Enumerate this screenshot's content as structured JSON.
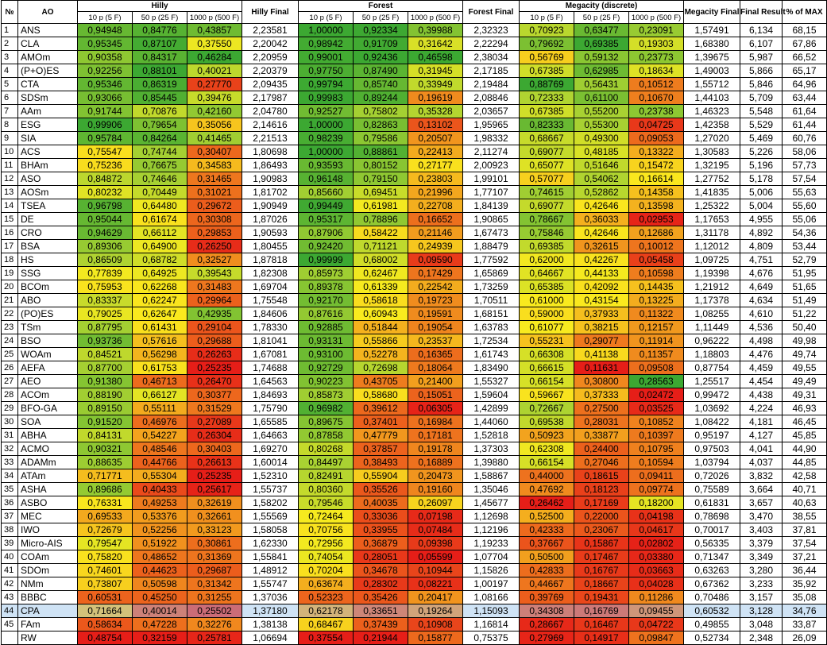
{
  "header": {
    "num": "№",
    "ao": "AO",
    "hilly": "Hilly",
    "hilly_final": "Hilly Final",
    "forest": "Forest",
    "forest_final": "Forest Final",
    "megacity": "Megacity (discrete)",
    "megacity_final": "Megacity Final",
    "final_result": "Final Result",
    "pct_max": "% of MAX",
    "sub": [
      "10 p (5 F)",
      "50 p (25 F)",
      "1000 p (500 F)",
      "10 p (5 F)",
      "50 p (25 F)",
      "1000 p (500 F)",
      "10 p (5 F)",
      "50 p (25 F)",
      "1000 p (500 F)"
    ]
  },
  "colors": {
    "final_bg": "#ffffff",
    "selected_row_bg": "#cfe3f5"
  },
  "rows": [
    {
      "num": "1",
      "ao": "ANS",
      "v": [
        "0,94948",
        "0,84776",
        "0,43857",
        "2,23581",
        "1,00000",
        "0,92334",
        "0,39988",
        "2,32323",
        "0,70923",
        "0,63477",
        "0,23091",
        "1,57491",
        "6,134",
        "68,15"
      ]
    },
    {
      "num": "2",
      "ao": "CLA",
      "v": [
        "0,95345",
        "0,87107",
        "0,37550",
        "2,20042",
        "0,98942",
        "0,91709",
        "0,31642",
        "2,22294",
        "0,79692",
        "0,69385",
        "0,19303",
        "1,68380",
        "6,107",
        "67,86"
      ]
    },
    {
      "num": "3",
      "ao": "AMOm",
      "v": [
        "0,90358",
        "0,84317",
        "0,46284",
        "2,20959",
        "0,99001",
        "0,92436",
        "0,46598",
        "2,38034",
        "0,56769",
        "0,59132",
        "0,23773",
        "1,39675",
        "5,987",
        "66,52"
      ]
    },
    {
      "num": "4",
      "ao": "(P+O)ES",
      "v": [
        "0,92256",
        "0,88101",
        "0,40021",
        "2,20379",
        "0,97750",
        "0,87490",
        "0,31945",
        "2,17185",
        "0,67385",
        "0,62985",
        "0,18634",
        "1,49003",
        "5,866",
        "65,17"
      ]
    },
    {
      "num": "5",
      "ao": "CTA",
      "v": [
        "0,95346",
        "0,86319",
        "0,27770",
        "2,09435",
        "0,99794",
        "0,85740",
        "0,33949",
        "2,19484",
        "0,88769",
        "0,56431",
        "0,10512",
        "1,55712",
        "5,846",
        "64,96"
      ]
    },
    {
      "num": "6",
      "ao": "SDSm",
      "v": [
        "0,93066",
        "0,85445",
        "0,39476",
        "2,17987",
        "0,99983",
        "0,89244",
        "0,19619",
        "2,08846",
        "0,72333",
        "0,61100",
        "0,10670",
        "1,44103",
        "5,709",
        "63,44"
      ]
    },
    {
      "num": "7",
      "ao": "AAm",
      "v": [
        "0,91744",
        "0,70876",
        "0,42160",
        "2,04780",
        "0,92527",
        "0,75802",
        "0,35328",
        "2,03657",
        "0,67385",
        "0,55200",
        "0,23738",
        "1,46323",
        "5,548",
        "61,64"
      ]
    },
    {
      "num": "8",
      "ao": "ESG",
      "v": [
        "0,99906",
        "0,79654",
        "0,35056",
        "2,14616",
        "1,00000",
        "0,82863",
        "0,13102",
        "1,95965",
        "0,82333",
        "0,55300",
        "0,04725",
        "1,42358",
        "5,529",
        "61,44"
      ]
    },
    {
      "num": "9",
      "ao": "SIA",
      "v": [
        "0,95784",
        "0,84264",
        "0,41465",
        "2,21513",
        "0,98239",
        "0,79586",
        "0,20507",
        "1,98332",
        "0,68667",
        "0,49300",
        "0,09053",
        "1,27020",
        "5,469",
        "60,76"
      ]
    },
    {
      "num": "10",
      "ao": "ACS",
      "v": [
        "0,75547",
        "0,74744",
        "0,30407",
        "1,80698",
        "1,00000",
        "0,88861",
        "0,22413",
        "2,11274",
        "0,69077",
        "0,48185",
        "0,13322",
        "1,30583",
        "5,226",
        "58,06"
      ]
    },
    {
      "num": "11",
      "ao": "BHAm",
      "v": [
        "0,75236",
        "0,76675",
        "0,34583",
        "1,86493",
        "0,93593",
        "0,80152",
        "0,27177",
        "2,00923",
        "0,65077",
        "0,51646",
        "0,15472",
        "1,32195",
        "5,196",
        "57,73"
      ]
    },
    {
      "num": "12",
      "ao": "ASO",
      "v": [
        "0,84872",
        "0,74646",
        "0,31465",
        "1,90983",
        "0,96148",
        "0,79150",
        "0,23803",
        "1,99101",
        "0,57077",
        "0,54062",
        "0,16614",
        "1,27752",
        "5,178",
        "57,54"
      ]
    },
    {
      "num": "13",
      "ao": "AOSm",
      "v": [
        "0,80232",
        "0,70449",
        "0,31021",
        "1,81702",
        "0,85660",
        "0,69451",
        "0,21996",
        "1,77107",
        "0,74615",
        "0,52862",
        "0,14358",
        "1,41835",
        "5,006",
        "55,63"
      ]
    },
    {
      "num": "14",
      "ao": "TSEA",
      "v": [
        "0,96798",
        "0,64480",
        "0,29672",
        "1,90949",
        "0,99449",
        "0,61981",
        "0,22708",
        "1,84139",
        "0,69077",
        "0,42646",
        "0,13598",
        "1,25322",
        "5,004",
        "55,60"
      ]
    },
    {
      "num": "15",
      "ao": "DE",
      "v": [
        "0,95044",
        "0,61674",
        "0,30308",
        "1,87026",
        "0,95317",
        "0,78896",
        "0,16652",
        "1,90865",
        "0,78667",
        "0,36033",
        "0,02953",
        "1,17653",
        "4,955",
        "55,06"
      ]
    },
    {
      "num": "16",
      "ao": "CRO",
      "v": [
        "0,94629",
        "0,66112",
        "0,29853",
        "1,90593",
        "0,87906",
        "0,58422",
        "0,21146",
        "1,67473",
        "0,75846",
        "0,42646",
        "0,12686",
        "1,31178",
        "4,892",
        "54,36"
      ]
    },
    {
      "num": "17",
      "ao": "BSA",
      "v": [
        "0,89306",
        "0,64900",
        "0,26250",
        "1,80455",
        "0,92420",
        "0,71121",
        "0,24939",
        "1,88479",
        "0,69385",
        "0,32615",
        "0,10012",
        "1,12012",
        "4,809",
        "53,44"
      ]
    },
    {
      "num": "18",
      "ao": "HS",
      "v": [
        "0,86509",
        "0,68782",
        "0,32527",
        "1,87818",
        "0,99999",
        "0,68002",
        "0,09590",
        "1,77592",
        "0,62000",
        "0,42267",
        "0,05458",
        "1,09725",
        "4,751",
        "52,79"
      ]
    },
    {
      "num": "19",
      "ao": "SSG",
      "v": [
        "0,77839",
        "0,64925",
        "0,39543",
        "1,82308",
        "0,85973",
        "0,62467",
        "0,17429",
        "1,65869",
        "0,64667",
        "0,44133",
        "0,10598",
        "1,19398",
        "4,676",
        "51,95"
      ]
    },
    {
      "num": "20",
      "ao": "BCOm",
      "v": [
        "0,75953",
        "0,62268",
        "0,31483",
        "1,69704",
        "0,89378",
        "0,61339",
        "0,22542",
        "1,73259",
        "0,65385",
        "0,42092",
        "0,14435",
        "1,21912",
        "4,649",
        "51,65"
      ]
    },
    {
      "num": "21",
      "ao": "ABO",
      "v": [
        "0,83337",
        "0,62247",
        "0,29964",
        "1,75548",
        "0,92170",
        "0,58618",
        "0,19723",
        "1,70511",
        "0,61000",
        "0,43154",
        "0,13225",
        "1,17378",
        "4,634",
        "51,49"
      ]
    },
    {
      "num": "22",
      "ao": "(PO)ES",
      "v": [
        "0,79025",
        "0,62647",
        "0,42935",
        "1,84606",
        "0,87616",
        "0,60943",
        "0,19591",
        "1,68151",
        "0,59000",
        "0,37933",
        "0,11322",
        "1,08255",
        "4,610",
        "51,22"
      ]
    },
    {
      "num": "23",
      "ao": "TSm",
      "v": [
        "0,87795",
        "0,61431",
        "0,29104",
        "1,78330",
        "0,92885",
        "0,51844",
        "0,19054",
        "1,63783",
        "0,61077",
        "0,38215",
        "0,12157",
        "1,11449",
        "4,536",
        "50,40"
      ]
    },
    {
      "num": "24",
      "ao": "BSO",
      "v": [
        "0,93736",
        "0,57616",
        "0,29688",
        "1,81041",
        "0,93131",
        "0,55866",
        "0,23537",
        "1,72534",
        "0,55231",
        "0,29077",
        "0,11914",
        "0,96222",
        "4,498",
        "49,98"
      ]
    },
    {
      "num": "25",
      "ao": "WOAm",
      "v": [
        "0,84521",
        "0,56298",
        "0,26263",
        "1,67081",
        "0,93100",
        "0,52278",
        "0,16365",
        "1,61743",
        "0,66308",
        "0,41138",
        "0,11357",
        "1,18803",
        "4,476",
        "49,74"
      ]
    },
    {
      "num": "26",
      "ao": "AEFA",
      "v": [
        "0,87700",
        "0,61753",
        "0,25235",
        "1,74688",
        "0,92729",
        "0,72698",
        "0,18064",
        "1,83490",
        "0,66615",
        "0,11631",
        "0,09508",
        "0,87754",
        "4,459",
        "49,55"
      ]
    },
    {
      "num": "27",
      "ao": "AEO",
      "v": [
        "0,91380",
        "0,46713",
        "0,26470",
        "1,64563",
        "0,90223",
        "0,43705",
        "0,21400",
        "1,55327",
        "0,66154",
        "0,30800",
        "0,28563",
        "1,25517",
        "4,454",
        "49,49"
      ]
    },
    {
      "num": "28",
      "ao": "ACOm",
      "v": [
        "0,88190",
        "0,66127",
        "0,30377",
        "1,84693",
        "0,85873",
        "0,58680",
        "0,15051",
        "1,59604",
        "0,59667",
        "0,37333",
        "0,02472",
        "0,99472",
        "4,438",
        "49,31"
      ]
    },
    {
      "num": "29",
      "ao": "BFO-GA",
      "v": [
        "0,89150",
        "0,55111",
        "0,31529",
        "1,75790",
        "0,96982",
        "0,39612",
        "0,06305",
        "1,42899",
        "0,72667",
        "0,27500",
        "0,03525",
        "1,03692",
        "4,224",
        "46,93"
      ]
    },
    {
      "num": "30",
      "ao": "SOA",
      "v": [
        "0,91520",
        "0,46976",
        "0,27089",
        "1,65585",
        "0,89675",
        "0,37401",
        "0,16984",
        "1,44060",
        "0,69538",
        "0,28031",
        "0,10852",
        "1,08422",
        "4,181",
        "46,45"
      ]
    },
    {
      "num": "31",
      "ao": "ABHA",
      "v": [
        "0,84131",
        "0,54227",
        "0,26304",
        "1,64663",
        "0,87858",
        "0,47779",
        "0,17181",
        "1,52818",
        "0,50923",
        "0,33877",
        "0,10397",
        "0,95197",
        "4,127",
        "45,85"
      ]
    },
    {
      "num": "32",
      "ao": "ACMO",
      "v": [
        "0,90321",
        "0,48546",
        "0,30403",
        "1,69270",
        "0,80268",
        "0,37857",
        "0,19178",
        "1,37303",
        "0,62308",
        "0,24400",
        "0,10795",
        "0,97503",
        "4,041",
        "44,90"
      ]
    },
    {
      "num": "33",
      "ao": "ADAMm",
      "v": [
        "0,88635",
        "0,44766",
        "0,26613",
        "1,60014",
        "0,84497",
        "0,38493",
        "0,16889",
        "1,39880",
        "0,66154",
        "0,27046",
        "0,10594",
        "1,03794",
        "4,037",
        "44,85"
      ]
    },
    {
      "num": "34",
      "ao": "ATAm",
      "v": [
        "0,71771",
        "0,55304",
        "0,25235",
        "1,52310",
        "0,82491",
        "0,55904",
        "0,20473",
        "1,58867",
        "0,44000",
        "0,18615",
        "0,09411",
        "0,72026",
        "3,832",
        "42,58"
      ]
    },
    {
      "num": "35",
      "ao": "ASHA",
      "v": [
        "0,89686",
        "0,40433",
        "0,25617",
        "1,55737",
        "0,80360",
        "0,35526",
        "0,19160",
        "1,35046",
        "0,47692",
        "0,18123",
        "0,09774",
        "0,75589",
        "3,664",
        "40,71"
      ]
    },
    {
      "num": "36",
      "ao": "ASBO",
      "v": [
        "0,76331",
        "0,49253",
        "0,32619",
        "1,58202",
        "0,79546",
        "0,40035",
        "0,26097",
        "1,45677",
        "0,26462",
        "0,17169",
        "0,18200",
        "0,61831",
        "3,657",
        "40,63"
      ]
    },
    {
      "num": "37",
      "ao": "MEC",
      "v": [
        "0,69533",
        "0,53376",
        "0,32661",
        "1,55569",
        "0,72464",
        "0,33036",
        "0,07198",
        "1,12698",
        "0,52500",
        "0,22000",
        "0,04198",
        "0,78698",
        "3,470",
        "38,55"
      ]
    },
    {
      "num": "38",
      "ao": "IWO",
      "v": [
        "0,72679",
        "0,52256",
        "0,33123",
        "1,58058",
        "0,70756",
        "0,33955",
        "0,07484",
        "1,12196",
        "0,42333",
        "0,23067",
        "0,04617",
        "0,70017",
        "3,403",
        "37,81"
      ]
    },
    {
      "num": "39",
      "ao": "Micro-AIS",
      "v": [
        "0,79547",
        "0,51922",
        "0,30861",
        "1,62330",
        "0,72956",
        "0,36879",
        "0,09398",
        "1,19233",
        "0,37667",
        "0,15867",
        "0,02802",
        "0,56335",
        "3,379",
        "37,54"
      ]
    },
    {
      "num": "40",
      "ao": "COAm",
      "v": [
        "0,75820",
        "0,48652",
        "0,31369",
        "1,55841",
        "0,74054",
        "0,28051",
        "0,05599",
        "1,07704",
        "0,50500",
        "0,17467",
        "0,03380",
        "0,71347",
        "3,349",
        "37,21"
      ]
    },
    {
      "num": "41",
      "ao": "SDOm",
      "v": [
        "0,74601",
        "0,44623",
        "0,29687",
        "1,48912",
        "0,70204",
        "0,34678",
        "0,10944",
        "1,15826",
        "0,42833",
        "0,16767",
        "0,03663",
        "0,63263",
        "3,280",
        "36,44"
      ]
    },
    {
      "num": "42",
      "ao": "NMm",
      "v": [
        "0,73807",
        "0,50598",
        "0,31342",
        "1,55747",
        "0,63674",
        "0,28302",
        "0,08221",
        "1,00197",
        "0,44667",
        "0,18667",
        "0,04028",
        "0,67362",
        "3,233",
        "35,92"
      ]
    },
    {
      "num": "43",
      "ao": "BBBC",
      "v": [
        "0,60531",
        "0,45250",
        "0,31255",
        "1,37036",
        "0,52323",
        "0,35426",
        "0,20417",
        "1,08166",
        "0,39769",
        "0,19431",
        "0,11286",
        "0,70486",
        "3,157",
        "35,08"
      ]
    },
    {
      "num": "44",
      "ao": "CPA",
      "v": [
        "0,71664",
        "0,40014",
        "0,25502",
        "1,37180",
        "0,62178",
        "0,33651",
        "0,19264",
        "1,15093",
        "0,34308",
        "0,16769",
        "0,09455",
        "0,60532",
        "3,128",
        "34,76"
      ]
    },
    {
      "num": "45",
      "ao": "FAm",
      "v": [
        "0,58634",
        "0,47228",
        "0,32276",
        "1,38138",
        "0,68467",
        "0,37439",
        "0,10908",
        "1,16814",
        "0,28667",
        "0,16467",
        "0,04722",
        "0,49855",
        "3,048",
        "33,87"
      ]
    },
    {
      "num": "",
      "ao": "RW",
      "v": [
        "0,48754",
        "0,32159",
        "0,25781",
        "1,06694",
        "0,37554",
        "0,21944",
        "0,15877",
        "0,75375",
        "0,27969",
        "0,14917",
        "0,09847",
        "0,52734",
        "2,348",
        "26,09"
      ]
    }
  ]
}
